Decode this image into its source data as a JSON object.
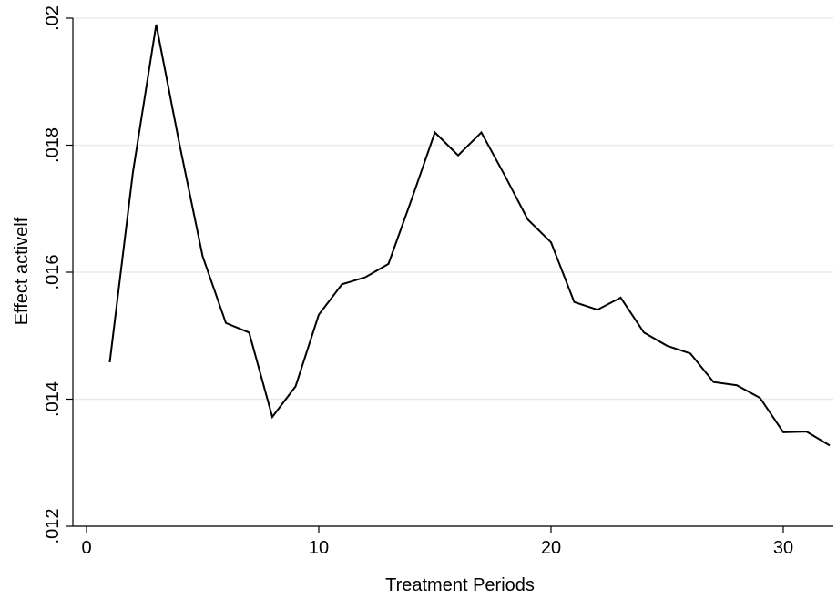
{
  "chart_data": {
    "type": "line",
    "title": "",
    "xlabel": "Treatment Periods",
    "ylabel": "Effect activelf",
    "xlim": [
      0,
      32
    ],
    "ylim": [
      0.012,
      0.02
    ],
    "xticks": [
      0,
      10,
      20,
      30
    ],
    "xtick_labels": [
      "0",
      "10",
      "20",
      "30"
    ],
    "yticks": [
      0.012,
      0.014,
      0.016,
      0.018,
      0.02
    ],
    "ytick_labels": [
      ".012",
      ".014",
      ".016",
      ".018",
      ".02"
    ],
    "grid": "horizontal",
    "colors": {
      "line": "#000000",
      "grid": "#e5ecef",
      "axis": "#000000"
    },
    "series": [
      {
        "x": [
          1,
          2,
          3,
          4,
          5,
          6,
          7,
          8,
          9,
          10,
          11,
          12,
          13,
          14,
          15,
          16,
          17,
          18,
          19,
          20,
          21,
          22,
          23,
          24,
          25,
          26,
          27,
          28,
          29,
          30,
          31,
          32
        ],
        "values": [
          0.01458,
          0.01758,
          0.0199,
          0.01802,
          0.01625,
          0.0152,
          0.01505,
          0.01372,
          0.0142,
          0.01533,
          0.01581,
          0.01592,
          0.01613,
          0.01715,
          0.0182,
          0.01784,
          0.0182,
          0.01753,
          0.01683,
          0.01647,
          0.01553,
          0.01541,
          0.0156,
          0.01505,
          0.01484,
          0.01472,
          0.01427,
          0.01422,
          0.01402,
          0.01348,
          0.01349,
          0.01327
        ]
      }
    ]
  }
}
